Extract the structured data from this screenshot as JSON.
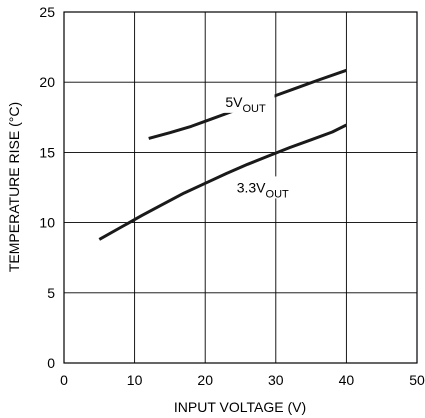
{
  "chart_data": {
    "type": "line",
    "xlabel": "INPUT VOLTAGE (V)",
    "ylabel": "TEMPERATURE RISE (°C)",
    "xlim": [
      0,
      50
    ],
    "ylim": [
      0,
      25
    ],
    "xticks": [
      "0",
      "10",
      "20",
      "30",
      "40",
      "50"
    ],
    "yticks": [
      "0",
      "5",
      "10",
      "15",
      "20",
      "25"
    ],
    "grid": true,
    "line_color": "#1a1a1a",
    "series": [
      {
        "label_main": "5V",
        "label_sub": "OUT",
        "x": [
          12,
          15,
          18,
          21,
          24,
          27,
          30,
          33,
          36,
          40
        ],
        "y": [
          16.0,
          16.4,
          16.85,
          17.4,
          17.95,
          18.5,
          19.05,
          19.6,
          20.15,
          20.85
        ]
      },
      {
        "label_main": "3.3V",
        "label_sub": "OUT",
        "x": [
          5,
          8,
          11,
          14,
          17,
          20,
          23,
          26,
          29,
          32,
          35,
          38,
          40
        ],
        "y": [
          8.8,
          9.65,
          10.5,
          11.3,
          12.1,
          12.8,
          13.5,
          14.15,
          14.75,
          15.35,
          15.9,
          16.45,
          16.95
        ]
      }
    ]
  }
}
